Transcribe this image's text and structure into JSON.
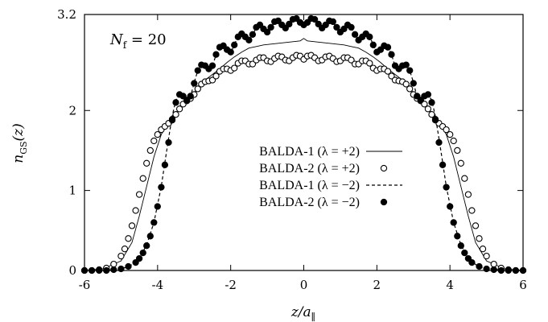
{
  "chart_data": {
    "type": "line",
    "annotation": "N_f = 20",
    "xlabel": "z/a_∥",
    "ylabel": "n_GS(z)",
    "xlim": [
      -6,
      6
    ],
    "ylim": [
      0,
      3.2
    ],
    "x_ticks": [
      -6,
      -4,
      -2,
      0,
      2,
      4,
      6
    ],
    "x_tick_labels": [
      "-6",
      "-4",
      "-2",
      "0",
      "2",
      "4",
      "6"
    ],
    "y_ticks": [
      0,
      1,
      2,
      3.2
    ],
    "y_tick_labels": [
      "0",
      "1",
      "2",
      "3.2"
    ],
    "grid": false,
    "legend_position": "center",
    "series": [
      {
        "name": "BALDA-1 (λ = +2)",
        "style": "solid-line",
        "x": [
          -6,
          -5.5,
          -5.0,
          -4.7,
          -4.5,
          -4.3,
          -4.1,
          -3.9,
          -3.7,
          -3.5,
          -3.3,
          -3.1,
          -2.9,
          -2.7,
          -2.5,
          -2.3,
          -2.1,
          -1.9,
          -1.7,
          -1.5,
          -1.3,
          -1.1,
          -0.9,
          -0.7,
          -0.5,
          -0.3,
          -0.1,
          0,
          0.1,
          0.3,
          0.5,
          0.7,
          0.9,
          1.1,
          1.3,
          1.5,
          1.7,
          1.9,
          2.1,
          2.3,
          2.5,
          2.7,
          2.9,
          3.1,
          3.3,
          3.5,
          3.7,
          3.9,
          4.1,
          4.3,
          4.5,
          4.7,
          5.0,
          5.5,
          6
        ],
        "y": [
          0.0,
          0.02,
          0.12,
          0.35,
          0.68,
          1.05,
          1.42,
          1.7,
          1.86,
          1.97,
          2.08,
          2.18,
          2.27,
          2.38,
          2.45,
          2.52,
          2.6,
          2.67,
          2.73,
          2.78,
          2.8,
          2.82,
          2.83,
          2.84,
          2.85,
          2.86,
          2.87,
          2.9,
          2.87,
          2.86,
          2.85,
          2.84,
          2.83,
          2.82,
          2.8,
          2.78,
          2.73,
          2.67,
          2.6,
          2.52,
          2.45,
          2.38,
          2.27,
          2.18,
          2.08,
          1.97,
          1.86,
          1.7,
          1.42,
          1.05,
          0.68,
          0.35,
          0.12,
          0.02,
          0.0
        ]
      },
      {
        "name": "BALDA-2 (λ = +2)",
        "style": "open-circles",
        "x": [
          -6,
          -5.8,
          -5.6,
          -5.4,
          -5.2,
          -5.0,
          -4.9,
          -4.8,
          -4.7,
          -4.6,
          -4.5,
          -4.4,
          -4.3,
          -4.2,
          -4.1,
          -4.0,
          -3.9,
          -3.8,
          -3.7,
          -3.6,
          -3.5,
          -3.4,
          -3.3,
          -3.2,
          -3.1,
          -3.0,
          -2.9,
          -2.8,
          -2.7,
          -2.6,
          -2.5,
          -2.4,
          -2.3,
          -2.2,
          -2.1,
          -2.0,
          -1.9,
          -1.8,
          -1.7,
          -1.6,
          -1.5,
          -1.4,
          -1.3,
          -1.2,
          -1.1,
          -1.0,
          -0.9,
          -0.8,
          -0.7,
          -0.6,
          -0.5,
          -0.4,
          -0.3,
          -0.2,
          -0.1,
          0.0,
          0.1,
          0.2,
          0.3,
          0.4,
          0.5,
          0.6,
          0.7,
          0.8,
          0.9,
          1.0,
          1.1,
          1.2,
          1.3,
          1.4,
          1.5,
          1.6,
          1.7,
          1.8,
          1.9,
          2.0,
          2.1,
          2.2,
          2.3,
          2.4,
          2.5,
          2.6,
          2.7,
          2.8,
          2.9,
          3.0,
          3.1,
          3.2,
          3.3,
          3.4,
          3.5,
          3.6,
          3.7,
          3.8,
          3.9,
          4.0,
          4.1,
          4.2,
          4.3,
          4.4,
          4.5,
          4.6,
          4.7,
          4.8,
          4.9,
          5.0,
          5.2,
          5.4,
          5.6,
          5.8,
          6.0
        ],
        "y": [
          0.0,
          0.0,
          0.01,
          0.03,
          0.08,
          0.18,
          0.27,
          0.4,
          0.56,
          0.75,
          0.95,
          1.15,
          1.34,
          1.5,
          1.62,
          1.7,
          1.76,
          1.8,
          1.84,
          1.89,
          1.95,
          2.02,
          2.08,
          2.12,
          2.15,
          2.2,
          2.27,
          2.33,
          2.36,
          2.37,
          2.38,
          2.43,
          2.49,
          2.52,
          2.52,
          2.5,
          2.53,
          2.59,
          2.62,
          2.62,
          2.58,
          2.58,
          2.63,
          2.66,
          2.66,
          2.62,
          2.61,
          2.65,
          2.68,
          2.67,
          2.63,
          2.62,
          2.66,
          2.69,
          2.68,
          2.64,
          2.68,
          2.69,
          2.66,
          2.62,
          2.63,
          2.67,
          2.68,
          2.65,
          2.61,
          2.62,
          2.66,
          2.66,
          2.63,
          2.58,
          2.58,
          2.62,
          2.62,
          2.59,
          2.53,
          2.5,
          2.52,
          2.52,
          2.49,
          2.43,
          2.38,
          2.37,
          2.36,
          2.33,
          2.27,
          2.2,
          2.15,
          2.12,
          2.08,
          2.02,
          1.95,
          1.89,
          1.84,
          1.8,
          1.76,
          1.7,
          1.62,
          1.5,
          1.34,
          1.15,
          0.95,
          0.75,
          0.56,
          0.4,
          0.27,
          0.18,
          0.08,
          0.03,
          0.01,
          0.0,
          0.0
        ]
      },
      {
        "name": "BALDA-1 (λ = −2)",
        "style": "dashed-line",
        "x": [
          -6,
          -5.5,
          -4.8,
          -4.5,
          -4.3,
          -4.1,
          -3.9,
          -3.8,
          -3.7,
          -3.6,
          -3.5,
          -3.4,
          -3.3,
          -3.2,
          -3.1,
          -3.0,
          -2.9,
          -2.8,
          -2.7,
          -2.6,
          -2.5,
          -2.4,
          -2.3,
          -2.2,
          -2.1,
          -2.0,
          -1.9,
          -1.8,
          -1.7,
          -1.6,
          -1.5,
          -1.4,
          -1.3,
          -1.2,
          -1.1,
          -1.0,
          -0.9,
          -0.8,
          -0.7,
          -0.6,
          -0.5,
          -0.4,
          -0.3,
          -0.2,
          -0.1,
          0.0,
          0.1,
          0.2,
          0.3,
          0.4,
          0.5,
          0.6,
          0.7,
          0.8,
          0.9,
          1.0,
          1.1,
          1.2,
          1.3,
          1.4,
          1.5,
          1.6,
          1.7,
          1.8,
          1.9,
          2.0,
          2.1,
          2.2,
          2.3,
          2.4,
          2.5,
          2.6,
          2.7,
          2.8,
          2.9,
          3.0,
          3.1,
          3.2,
          3.3,
          3.4,
          3.5,
          3.6,
          3.7,
          3.8,
          3.9,
          4.1,
          4.3,
          4.5,
          4.8,
          5.5,
          6
        ],
        "y": [
          0.0,
          0.0,
          0.04,
          0.15,
          0.32,
          0.6,
          1.05,
          1.35,
          1.65,
          1.93,
          2.13,
          2.2,
          2.18,
          2.12,
          2.17,
          2.35,
          2.5,
          2.57,
          2.57,
          2.51,
          2.55,
          2.7,
          2.8,
          2.82,
          2.76,
          2.72,
          2.82,
          2.93,
          2.97,
          2.93,
          2.88,
          2.94,
          3.04,
          3.07,
          3.02,
          2.97,
          3.03,
          3.1,
          3.12,
          3.06,
          3.02,
          3.07,
          3.13,
          3.14,
          3.09,
          3.06,
          3.09,
          3.14,
          3.13,
          3.07,
          3.02,
          3.06,
          3.12,
          3.1,
          3.03,
          2.97,
          3.02,
          3.07,
          3.04,
          2.94,
          2.88,
          2.93,
          2.97,
          2.93,
          2.82,
          2.72,
          2.76,
          2.82,
          2.8,
          2.7,
          2.55,
          2.51,
          2.57,
          2.57,
          2.5,
          2.35,
          2.17,
          2.12,
          2.18,
          2.2,
          2.13,
          1.93,
          1.65,
          1.35,
          1.05,
          0.6,
          0.32,
          0.15,
          0.04,
          0.0,
          0.0
        ]
      },
      {
        "name": "BALDA-2 (λ = −2)",
        "style": "filled-circles",
        "x": [
          -6,
          -5.8,
          -5.6,
          -5.4,
          -5.2,
          -5.0,
          -4.8,
          -4.6,
          -4.5,
          -4.4,
          -4.3,
          -4.2,
          -4.1,
          -4.0,
          -3.9,
          -3.8,
          -3.7,
          -3.6,
          -3.5,
          -3.4,
          -3.3,
          -3.2,
          -3.1,
          -3.0,
          -2.9,
          -2.8,
          -2.7,
          -2.6,
          -2.5,
          -2.4,
          -2.3,
          -2.2,
          -2.1,
          -2.0,
          -1.9,
          -1.8,
          -1.7,
          -1.6,
          -1.5,
          -1.4,
          -1.3,
          -1.2,
          -1.1,
          -1.0,
          -0.9,
          -0.8,
          -0.7,
          -0.6,
          -0.5,
          -0.4,
          -0.3,
          -0.2,
          -0.1,
          0.0,
          0.1,
          0.2,
          0.3,
          0.4,
          0.5,
          0.6,
          0.7,
          0.8,
          0.9,
          1.0,
          1.1,
          1.2,
          1.3,
          1.4,
          1.5,
          1.6,
          1.7,
          1.8,
          1.9,
          2.0,
          2.1,
          2.2,
          2.3,
          2.4,
          2.5,
          2.6,
          2.7,
          2.8,
          2.9,
          3.0,
          3.1,
          3.2,
          3.3,
          3.4,
          3.5,
          3.6,
          3.7,
          3.8,
          3.9,
          4.0,
          4.1,
          4.2,
          4.3,
          4.4,
          4.5,
          4.6,
          4.8,
          5.0,
          5.2,
          5.4,
          5.6,
          5.8,
          6.0
        ],
        "y": [
          0.0,
          0.0,
          0.0,
          0.0,
          0.01,
          0.02,
          0.05,
          0.1,
          0.15,
          0.22,
          0.31,
          0.43,
          0.6,
          0.8,
          1.04,
          1.32,
          1.6,
          1.88,
          2.1,
          2.2,
          2.18,
          2.13,
          2.18,
          2.34,
          2.5,
          2.57,
          2.56,
          2.52,
          2.56,
          2.7,
          2.79,
          2.81,
          2.76,
          2.73,
          2.82,
          2.92,
          2.96,
          2.92,
          2.88,
          2.95,
          3.04,
          3.07,
          3.02,
          2.98,
          3.04,
          3.11,
          3.12,
          3.07,
          3.03,
          3.08,
          3.14,
          3.15,
          3.1,
          3.07,
          3.1,
          3.15,
          3.14,
          3.08,
          3.03,
          3.07,
          3.12,
          3.11,
          3.04,
          2.98,
          3.02,
          3.07,
          3.04,
          2.95,
          2.88,
          2.92,
          2.96,
          2.92,
          2.82,
          2.73,
          2.76,
          2.81,
          2.79,
          2.7,
          2.56,
          2.52,
          2.56,
          2.57,
          2.5,
          2.34,
          2.18,
          2.13,
          2.18,
          2.2,
          2.1,
          1.88,
          1.6,
          1.32,
          1.04,
          0.8,
          0.6,
          0.43,
          0.31,
          0.22,
          0.15,
          0.1,
          0.05,
          0.02,
          0.01,
          0.0,
          0.0,
          0.0,
          0.0
        ]
      }
    ]
  }
}
